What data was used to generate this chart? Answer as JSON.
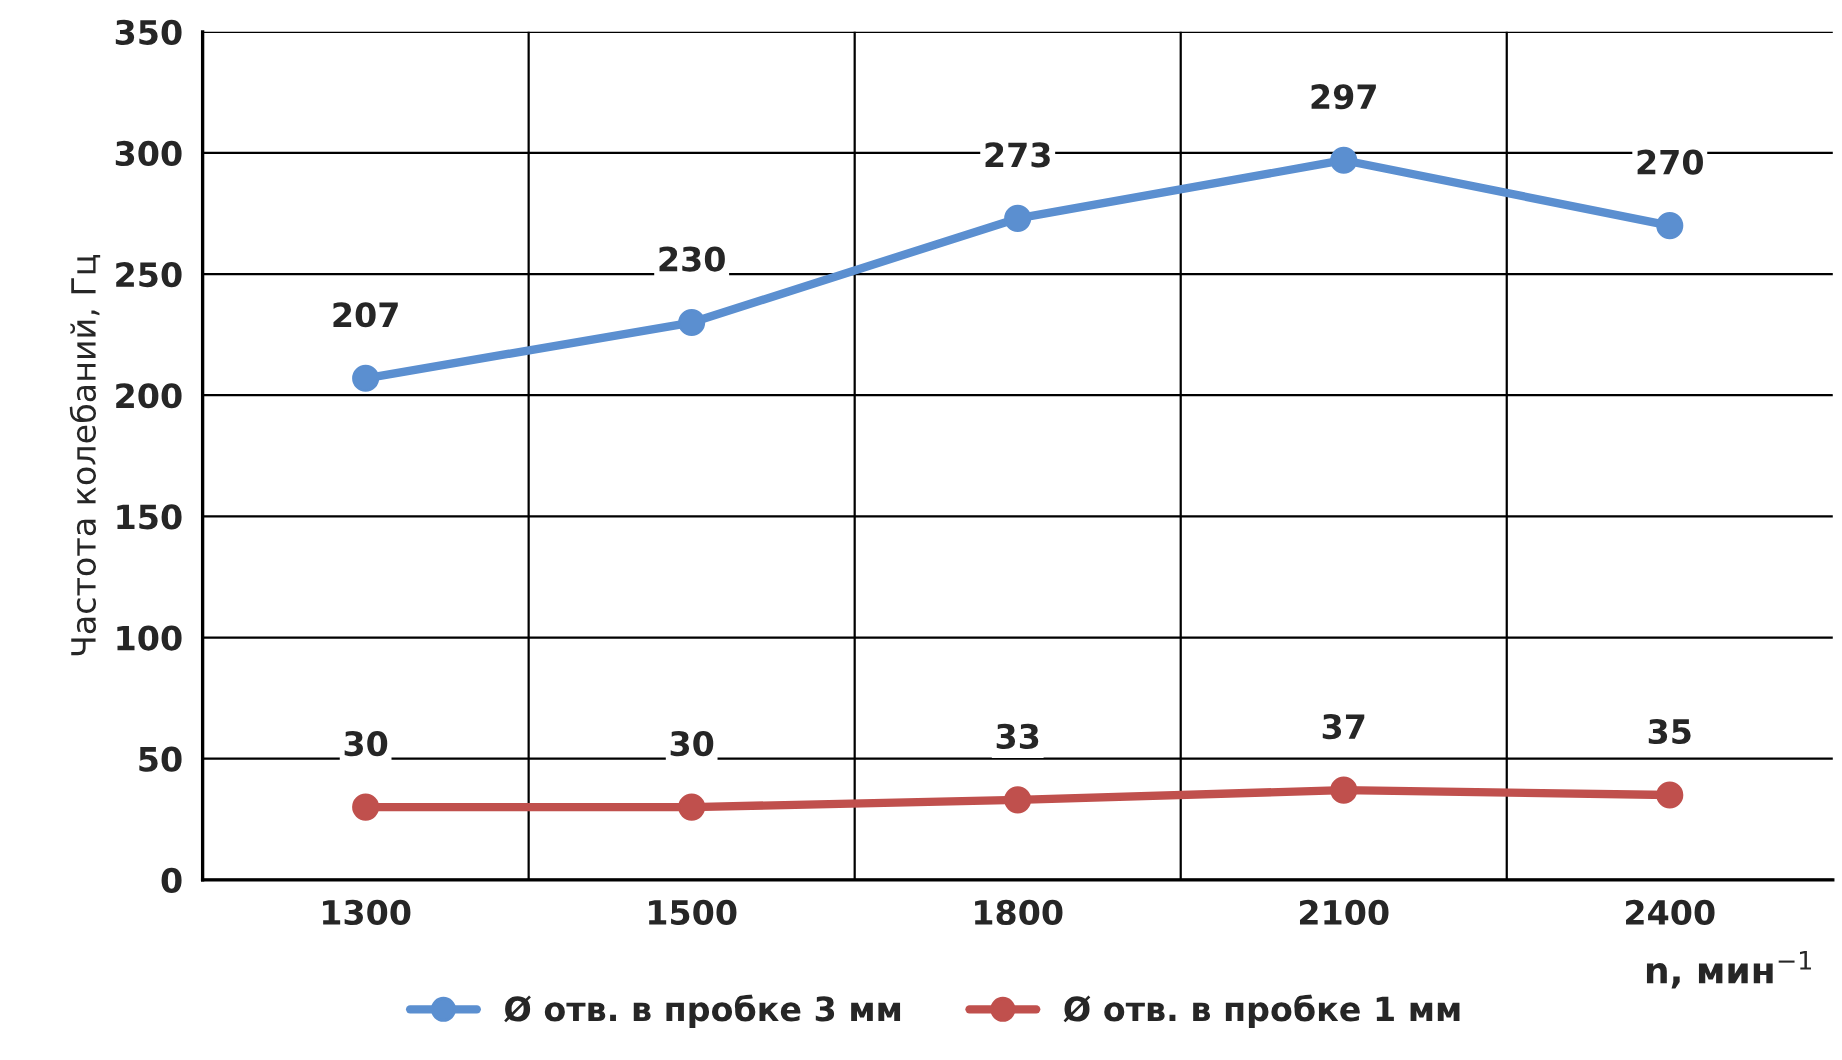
{
  "chart_data": {
    "type": "line",
    "xlabel": "n, мин$^{−1}$",
    "ylabel": "Частота колебаний, Гц",
    "categories": [
      "1300",
      "1500",
      "1800",
      "2100",
      "2400"
    ],
    "series": [
      {
        "name": "Ø отв. в пробке 3 мм",
        "color": "#5b8fd0",
        "values": [
          207,
          230,
          273,
          297,
          270
        ]
      },
      {
        "name": "Ø отв. в пробке 1 мм",
        "color": "#c0504d",
        "values": [
          30,
          30,
          33,
          37,
          35
        ]
      }
    ],
    "ylim": [
      0,
      350
    ],
    "yticks": [
      0,
      50,
      100,
      150,
      200,
      250,
      300,
      350
    ],
    "grid": true,
    "legend": "bottom",
    "marker": "circle",
    "line_style": "solid",
    "data_labels": true
  }
}
